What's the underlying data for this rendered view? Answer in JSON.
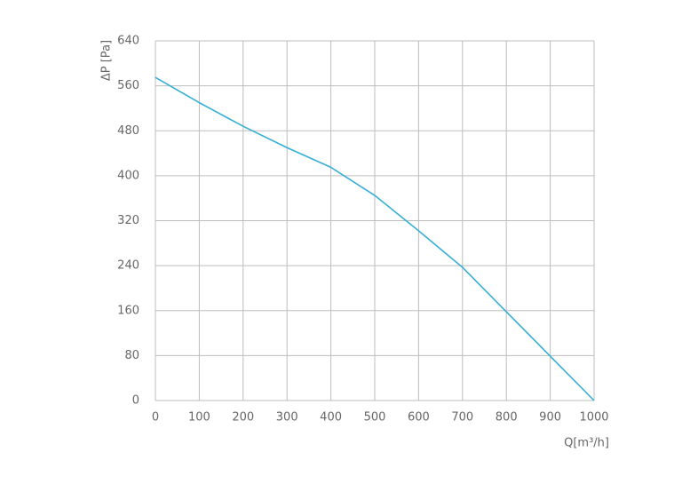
{
  "chart_data": {
    "type": "line",
    "x_label": "Q[m³/h]",
    "y_label": "ΔP [Pa]",
    "x": [
      0,
      100,
      200,
      300,
      400,
      500,
      600,
      700,
      800,
      900,
      1000
    ],
    "series": [
      {
        "color": "#36aed6",
        "values": [
          575,
          530,
          488,
          450,
          415,
          365,
          302,
          237,
          158,
          79,
          0
        ]
      }
    ],
    "xlim": [
      0,
      1000
    ],
    "xticks": [
      0,
      100,
      200,
      300,
      400,
      500,
      600,
      700,
      800,
      900,
      1000
    ],
    "ylim": [
      0,
      640
    ],
    "yticks": [
      0,
      80,
      160,
      240,
      320,
      400,
      480,
      560,
      640
    ],
    "grid": true
  }
}
